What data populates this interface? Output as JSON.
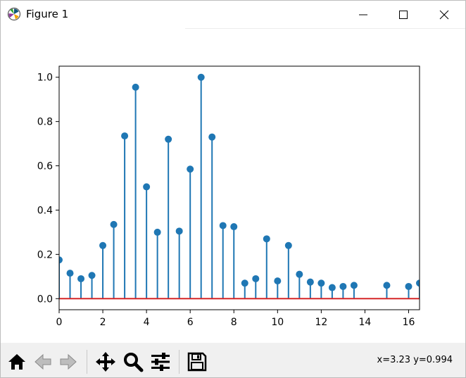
{
  "window": {
    "title": "Figure 1",
    "icon": "matplotlib-logo-icon",
    "controls": [
      "minimize-icon",
      "maximize-icon",
      "close-icon"
    ]
  },
  "toolbar": {
    "buttons": [
      {
        "name": "home-button",
        "icon": "home-icon"
      },
      {
        "name": "back-button",
        "icon": "arrow-left-icon"
      },
      {
        "name": "forward-button",
        "icon": "arrow-right-icon"
      },
      {
        "name": "pan-button",
        "icon": "move-icon"
      },
      {
        "name": "zoom-button",
        "icon": "magnifier-icon"
      },
      {
        "name": "subplots-button",
        "icon": "sliders-icon"
      },
      {
        "name": "save-button",
        "icon": "floppy-disk-icon"
      }
    ],
    "coords": "x=3.23 y=0.994"
  },
  "colors": {
    "stem": "#1f77b4",
    "baseline": "#d62728"
  },
  "chart_data": {
    "type": "stem",
    "xlim": [
      0,
      16.5
    ],
    "ylim": [
      -0.05,
      1.05
    ],
    "xticks": [
      0,
      2,
      4,
      6,
      8,
      10,
      12,
      14,
      16
    ],
    "xtick_labels": [
      "0",
      "2",
      "4",
      "6",
      "8",
      "10",
      "12",
      "14",
      "16"
    ],
    "yticks": [
      0.0,
      0.2,
      0.4,
      0.6,
      0.8,
      1.0
    ],
    "ytick_labels": [
      "0.0",
      "0.2",
      "0.4",
      "0.6",
      "0.8",
      "1.0"
    ],
    "grid": false,
    "baseline": 0,
    "x": [
      0,
      0.5,
      1,
      1.5,
      2,
      2.5,
      3,
      3.5,
      4,
      4.5,
      5,
      5.5,
      6,
      6.5,
      7,
      7.5,
      8,
      8.5,
      9,
      9.5,
      10,
      10.5,
      11,
      11.5,
      12,
      12.5,
      13,
      13.5,
      15,
      16,
      16.5
    ],
    "y": [
      0.175,
      0.115,
      0.09,
      0.105,
      0.24,
      0.335,
      0.735,
      0.955,
      0.505,
      0.3,
      0.72,
      0.305,
      0.585,
      1.0,
      0.73,
      0.33,
      0.325,
      0.07,
      0.09,
      0.27,
      0.08,
      0.24,
      0.11,
      0.075,
      0.07,
      0.05,
      0.055,
      0.06,
      0.06,
      0.055,
      0.07
    ]
  }
}
